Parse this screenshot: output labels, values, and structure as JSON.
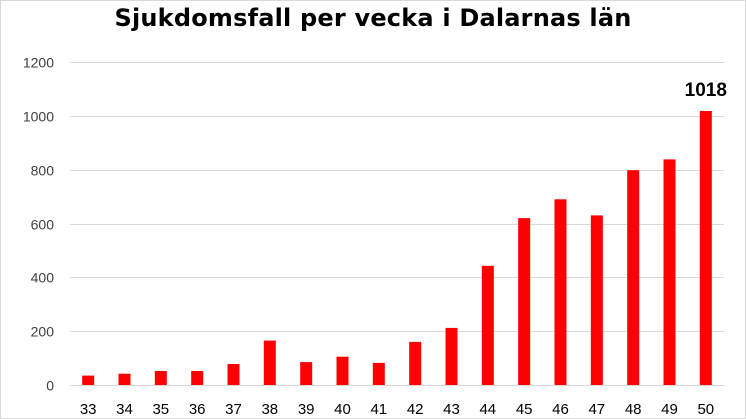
{
  "chart_data": {
    "type": "bar",
    "title": "Sjukdomsfall per vecka i Dalarnas län",
    "xlabel": "",
    "ylabel": "",
    "categories": [
      "33",
      "34",
      "35",
      "36",
      "37",
      "38",
      "39",
      "40",
      "41",
      "42",
      "43",
      "44",
      "45",
      "46",
      "47",
      "48",
      "49",
      "50"
    ],
    "values": [
      35,
      42,
      52,
      52,
      78,
      165,
      85,
      105,
      82,
      160,
      212,
      443,
      620,
      690,
      630,
      798,
      838,
      1018
    ],
    "ylim": [
      0,
      1200
    ],
    "yticks": [
      0,
      200,
      400,
      600,
      800,
      1000,
      1200
    ],
    "data_labels": [
      {
        "category": "50",
        "text": "1018"
      }
    ],
    "grid": true,
    "legend": "none",
    "colors": {
      "bar": "#ff0000",
      "grid": "#d9d9d9",
      "axis_text": "#404040"
    }
  }
}
